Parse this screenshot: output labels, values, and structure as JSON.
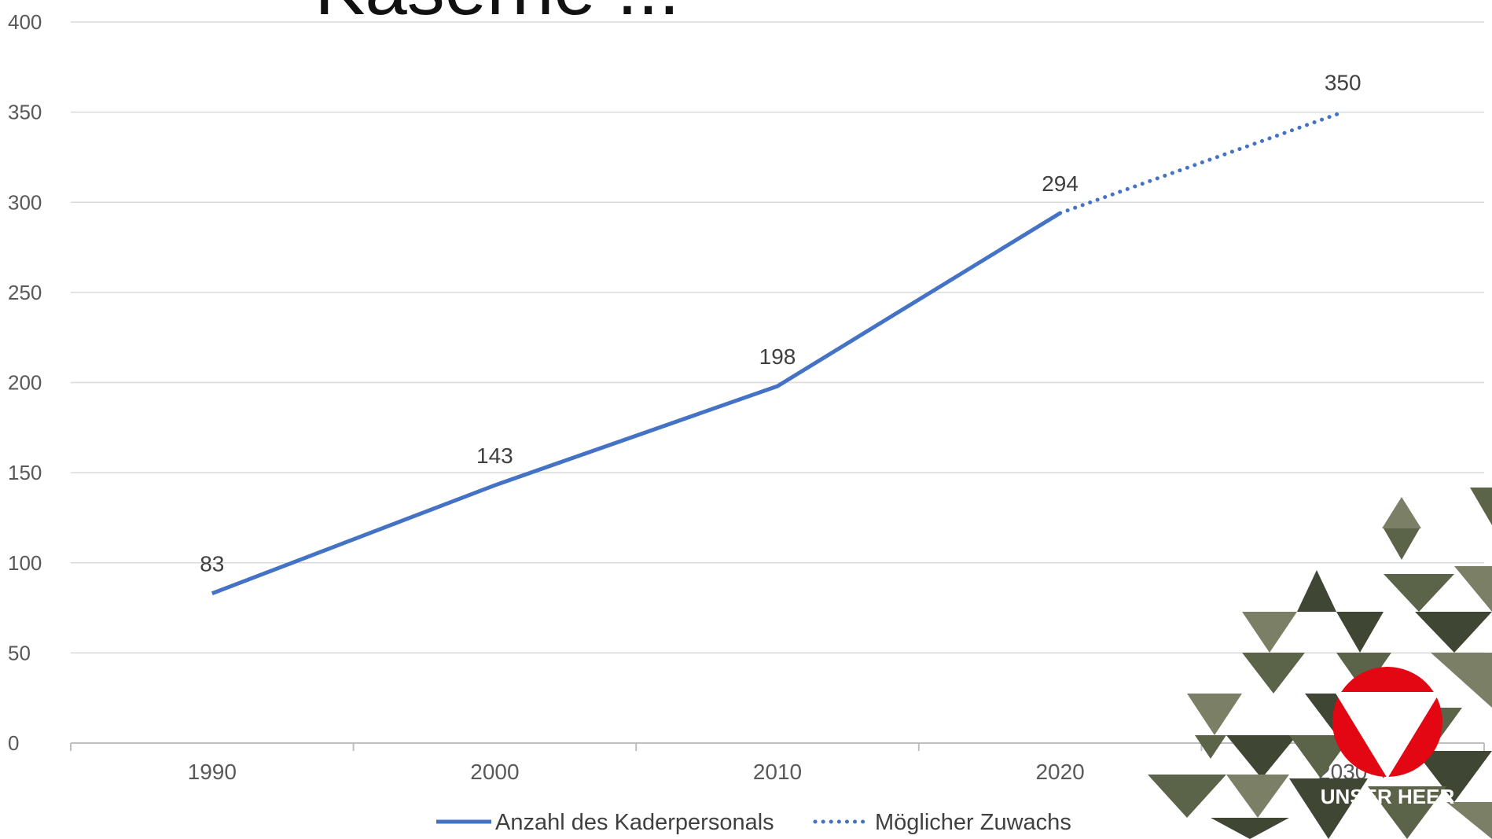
{
  "page": {
    "title": "Kaserne ...",
    "brand_text": "UNSER HEER"
  },
  "chart_data": {
    "type": "line",
    "title": "",
    "xlabel": "",
    "ylabel": "",
    "categories": [
      "1990",
      "2000",
      "2010",
      "2020",
      "2030"
    ],
    "ylim": [
      0,
      400
    ],
    "yticks": [
      0,
      50,
      100,
      150,
      200,
      250,
      300,
      350,
      400
    ],
    "grid": true,
    "legend_position": "bottom-center",
    "series": [
      {
        "name": "Anzahl des Kaderpersonals",
        "style": "solid",
        "color": "#4472C4",
        "points": [
          {
            "x": "1990",
            "y": 83
          },
          {
            "x": "2000",
            "y": 143
          },
          {
            "x": "2010",
            "y": 198
          },
          {
            "x": "2020",
            "y": 294
          }
        ]
      },
      {
        "name": "Möglicher Zuwachs",
        "style": "dotted",
        "color": "#4472C4",
        "points": [
          {
            "x": "2020",
            "y": 294
          },
          {
            "x": "2030",
            "y": 350
          }
        ]
      }
    ],
    "data_labels": [
      {
        "x": "1990",
        "y": 83,
        "text": "83"
      },
      {
        "x": "2000",
        "y": 143,
        "text": "143"
      },
      {
        "x": "2010",
        "y": 198,
        "text": "198"
      },
      {
        "x": "2020",
        "y": 294,
        "text": "294"
      },
      {
        "x": "2030",
        "y": 350,
        "text": "350"
      }
    ]
  },
  "colors": {
    "line": "#4472C4",
    "grid": "#d9d9d9",
    "axis": "#bfbfbf",
    "tick_text": "#595959",
    "label_text": "#404040",
    "logo_red": "#e30613",
    "camo_dark": "#3f4634",
    "camo_mid": "#5b6349",
    "camo_light": "#7a7f66"
  }
}
